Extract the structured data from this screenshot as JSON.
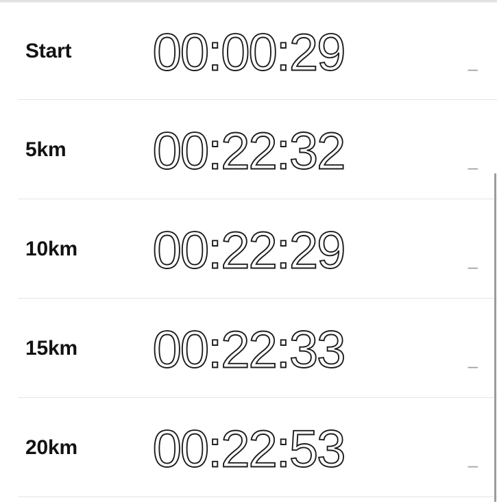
{
  "colors": {
    "background": "#ffffff",
    "label_text": "#121212",
    "time_text": "#1c1c1e",
    "divider": "#e4e4e4",
    "secondary_dash": "#a0a0a0",
    "scrollbar": "#9c9c9c",
    "top_bar": "#dcdcdc"
  },
  "splits": {
    "rows": [
      {
        "label": "Start",
        "time": "00:00:29",
        "secondary": "–"
      },
      {
        "label": "5km",
        "time": "00:22:32",
        "secondary": "–"
      },
      {
        "label": "10km",
        "time": "00:22:29",
        "secondary": "–"
      },
      {
        "label": "15km",
        "time": "00:22:33",
        "secondary": "–"
      },
      {
        "label": "20km",
        "time": "00:22:53",
        "secondary": "–"
      }
    ]
  }
}
